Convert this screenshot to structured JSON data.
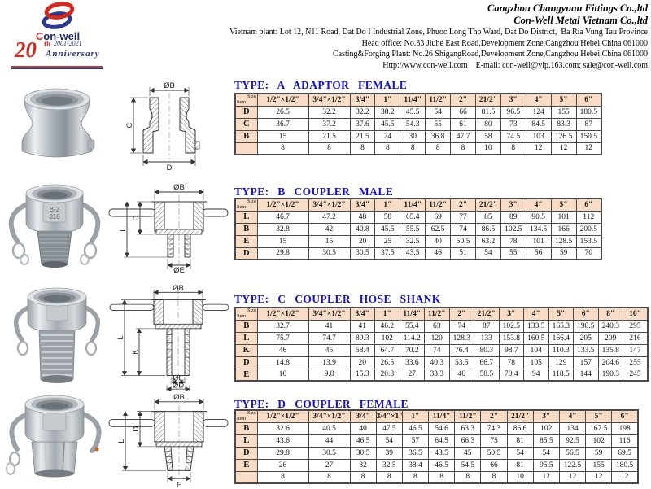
{
  "header": {
    "logo": {
      "brand_initial": "C",
      "brand_rest": "on-well",
      "anniversary_number": "20",
      "anniversary_th": "th",
      "anniversary_years": "2001-2021",
      "anniversary_word": "Anniversary",
      "red": "#d42a1e",
      "blue": "#2b3990"
    },
    "company_lines": [
      "Cangzhou Changyuan Fittings Co.,ltd",
      "Con-Well Metal Vietnam Co.,ltd"
    ],
    "address_lines": [
      "Vietnam plant: Lot 12, N11 Road, Dat Do I Industrial Zone, Phuoc Long Tho Ward, Dat Do District,  Ba Ria Vung Tau Province",
      "Head office: No.33 Jiuhe East Road,Development Zone,Cangzhou Hebei,China 061000",
      "Casting&Forging Plant: No.26 ShigangRoad,Development Zone,Cangzhou Hebei,China 061000",
      "Http://www.con-well.com    E-mail: con-well@vip.163.com; sale@con-well.com"
    ]
  },
  "accent": {
    "title_blue": "#1612cf",
    "table_header_bg": "#f8dcc6",
    "border": "#4a4a4a"
  },
  "sections": [
    {
      "id": "A",
      "title": "TYPE: A ADAPTOR FEMALE",
      "drawing_labels": [
        "ØB",
        "C",
        "D"
      ],
      "table": {
        "corner_top": "Size",
        "corner_bottom": "Item",
        "columns": [
          "1/2\"×1/2\"",
          "3/4\"×1/2\"",
          "3/4\"",
          "1\"",
          "11/4\"",
          "11/2\"",
          "2\"",
          "21/2\"",
          "3\"",
          "4\"",
          "5\"",
          "6\""
        ],
        "rows": [
          {
            "item": "D",
            "values": [
              "26.5",
              "32.2",
              "32.2",
              "38.2",
              "45.5",
              "54",
              "66",
              "81.5",
              "96.5",
              "124",
              "155",
              "180.5"
            ]
          },
          {
            "item": "C",
            "values": [
              "36.7",
              "37.2",
              "37.6",
              "45.5",
              "54.3",
              "55",
              "61",
              "80",
              "73",
              "84.5",
              "83.3",
              "87"
            ]
          },
          {
            "item": "B",
            "values": [
              "15",
              "21.5",
              "21.5",
              "24",
              "30",
              "36.8",
              "47.7",
              "58",
              "74.5",
              "103",
              "126.5",
              "150.5"
            ]
          },
          {
            "item": "",
            "values": [
              "8",
              "8",
              "8",
              "8",
              "8",
              "8",
              "8",
              "10",
              "8",
              "12",
              "12",
              "12"
            ]
          }
        ]
      }
    },
    {
      "id": "B",
      "title": "TYPE: B COUPLER MALE",
      "drawing_labels": [
        "ØB",
        "D",
        "L",
        "ØE"
      ],
      "photo_badge": [
        "B-2",
        "316"
      ],
      "table": {
        "corner_top": "Size",
        "corner_bottom": "Item",
        "columns": [
          "1/2\"×1/2\"",
          "3/4\"×1/2\"",
          "3/4\"",
          "1\"",
          "11/4\"",
          "11/2\"",
          "2\"",
          "21/2\"",
          "3\"",
          "4\"",
          "5\"",
          "6\""
        ],
        "rows": [
          {
            "item": "L",
            "values": [
              "46.7",
              "47.2",
              "48",
              "58",
              "65.4",
              "69",
              "77",
              "85",
              "89",
              "90.5",
              "101",
              "112"
            ]
          },
          {
            "item": "B",
            "values": [
              "32.8",
              "42",
              "40.8",
              "45.5",
              "55.5",
              "62.5",
              "74",
              "86.5",
              "102.5",
              "134.5",
              "166",
              "200.5"
            ]
          },
          {
            "item": "E",
            "values": [
              "15",
              "15",
              "20",
              "25",
              "32.5",
              "40",
              "50.5",
              "63.2",
              "78",
              "101",
              "128.5",
              "153.5"
            ]
          },
          {
            "item": "D",
            "values": [
              "29.8",
              "30.5",
              "30.5",
              "37.5",
              "43.5",
              "46",
              "51",
              "54",
              "55",
              "56",
              "59",
              "70"
            ]
          }
        ]
      }
    },
    {
      "id": "C",
      "title": "TYPE: C COUPLER HOSE SHANK",
      "drawing_labels": [
        "ØB",
        "L",
        "K",
        "ØE",
        "ØD"
      ],
      "table": {
        "corner_top": "Size",
        "corner_bottom": "Item",
        "columns": [
          "1/2\"×1/2\"",
          "3/4\"×1/2\"",
          "3/4\"",
          "1\"",
          "11/4\"",
          "11/2\"",
          "2\"",
          "21/2\"",
          "3\"",
          "4\"",
          "5\"",
          "6\"",
          "8\"",
          "10\""
        ],
        "rows": [
          {
            "item": "B",
            "values": [
              "32.7",
              "41",
              "41",
              "46.2",
              "55.4",
              "63",
              "74",
              "87",
              "102.5",
              "133.5",
              "165.3",
              "198.5",
              "240.3",
              "295"
            ]
          },
          {
            "item": "L",
            "values": [
              "75.7",
              "74.7",
              "89.3",
              "102",
              "114.2",
              "120",
              "128.3",
              "133",
              "153.8",
              "160.5",
              "166.4",
              "205",
              "209",
              "216"
            ]
          },
          {
            "item": "K",
            "values": [
              "46",
              "45",
              "58.4",
              "64.7",
              "70.2",
              "74",
              "76.4",
              "80.3",
              "98.7",
              "104",
              "110.3",
              "133.5",
              "135.8",
              "147"
            ]
          },
          {
            "item": "D",
            "values": [
              "14.8",
              "13.9",
              "20",
              "26.5",
              "33.6",
              "40.3",
              "53.5",
              "66.7",
              "78",
              "105",
              "129",
              "157",
              "204.6",
              "255"
            ]
          },
          {
            "item": "E",
            "values": [
              "10",
              "9.8",
              "15.3",
              "20.8",
              "27",
              "33.3",
              "46",
              "58.5",
              "70.4",
              "94",
              "118.5",
              "144",
              "190.3",
              "245"
            ]
          }
        ]
      }
    },
    {
      "id": "D",
      "title": "TYPE: D COUPLER FEMALE",
      "drawing_labels": [
        "ØB",
        "D",
        "L",
        "E"
      ],
      "table": {
        "corner_top": "Size",
        "corner_bottom": "Item",
        "columns": [
          "1/2\"×1/2\"",
          "3/4\"×1/2\"",
          "3/4\"",
          "3/4\"×1\"",
          "1\"",
          "11/4\"",
          "11/2\"",
          "2\"",
          "21/2\"",
          "3\"",
          "4\"",
          "5\"",
          "6\""
        ],
        "rows": [
          {
            "item": "B",
            "values": [
              "32.6",
              "40.5",
              "40",
              "47.5",
              "46.5",
              "54.6",
              "63.3",
              "74.3",
              "86.6",
              "102",
              "134",
              "167.5",
              "198"
            ]
          },
          {
            "item": "L",
            "values": [
              "43.6",
              "44",
              "46.5",
              "54",
              "57",
              "64.5",
              "66.3",
              "75",
              "81",
              "85.5",
              "92.5",
              "102",
              "116"
            ]
          },
          {
            "item": "D",
            "values": [
              "29.8",
              "30.5",
              "30.5",
              "39",
              "36.5",
              "43.5",
              "45",
              "50.5",
              "54",
              "54",
              "56.5",
              "59",
              "69.5"
            ]
          },
          {
            "item": "E",
            "values": [
              "26",
              "27",
              "32",
              "32.5",
              "38.4",
              "46.5",
              "54.5",
              "66",
              "81",
              "95.5",
              "122.5",
              "155",
              "180.5"
            ]
          },
          {
            "item": "",
            "values": [
              "8",
              "8",
              "8",
              "8",
              "8",
              "8",
              "8",
              "8",
              "10",
              "12",
              "12",
              "12",
              "12"
            ]
          }
        ]
      }
    }
  ]
}
